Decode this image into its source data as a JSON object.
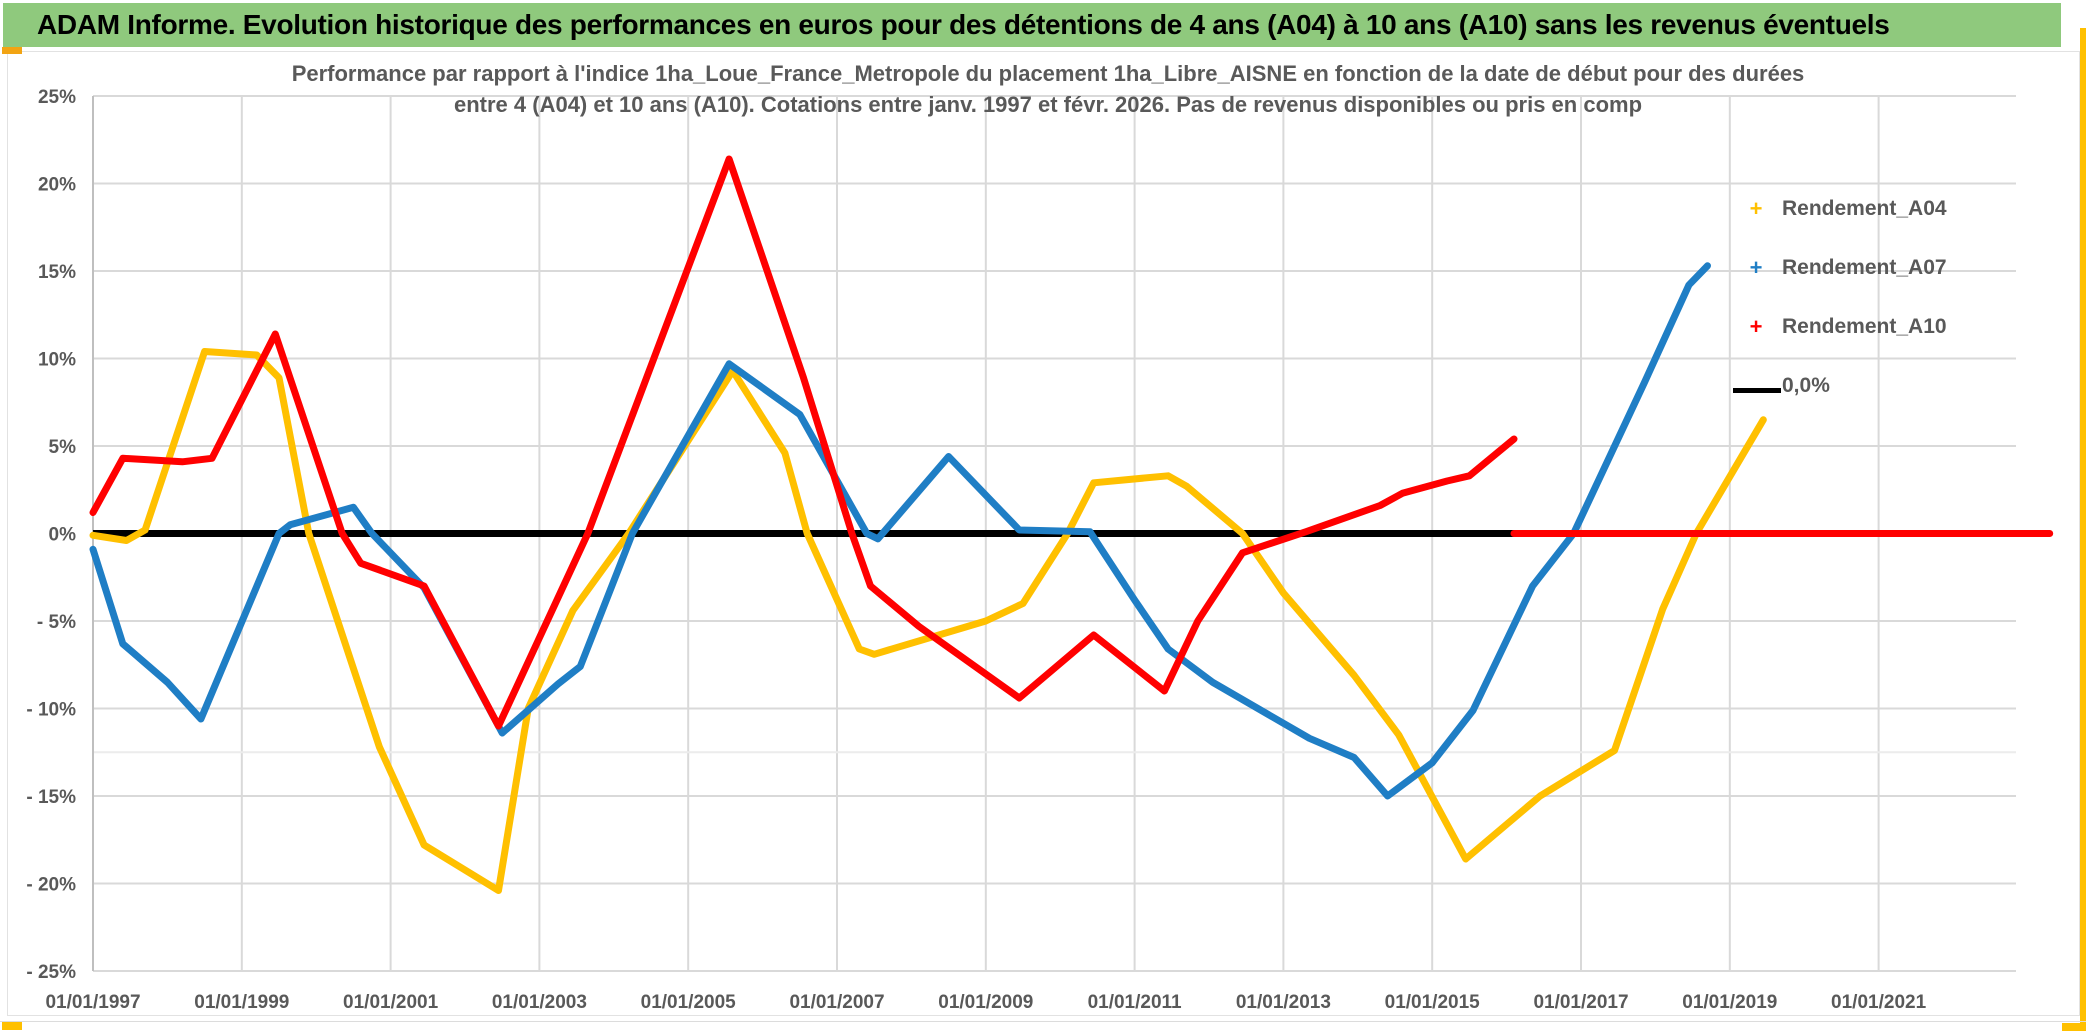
{
  "banner": {
    "title": "ADAM Informe. Evolution historique des performances en euros pour des détentions de 4 ans (A04) à 10 ans (A10) sans les revenus éventuels",
    "background_color": "#8fc97d"
  },
  "chart": {
    "title_line1": "Performance par rapport à l'indice 1ha_Loue_France_Metropole  du placement 1ha_Libre_AISNE en fonction de la date de début pour des durées",
    "title_line2": "entre 4 (A04) et 10 ans (A10). Cotations entre janv. 1997 et févr. 2026. Pas de revenus disponibles ou pris en comp"
  },
  "legend": {
    "items": [
      {
        "label": "Rendement_A04",
        "marker": "plus",
        "color": "#FFC000"
      },
      {
        "label": "Rendement_A07",
        "marker": "plus",
        "color": "#1F7EC5"
      },
      {
        "label": "Rendement_A10",
        "marker": "plus",
        "color": "#FF0000"
      },
      {
        "label": "0,0%",
        "marker": "line",
        "color": "#000000"
      }
    ]
  },
  "chart_data": {
    "type": "line",
    "title": "Performance par rapport à l'indice 1ha_Loue_France_Metropole du placement 1ha_Libre_AISNE",
    "legend_position": "right",
    "grid": true,
    "x_axis": {
      "tick_labels": [
        "01/01/1997",
        "01/01/1999",
        "01/01/2001",
        "01/01/2003",
        "01/01/2005",
        "01/01/2007",
        "01/01/2009",
        "01/01/2011",
        "01/01/2013",
        "01/01/2015",
        "01/01/2017",
        "01/01/2019",
        "01/01/2021"
      ],
      "tick_years": [
        1997,
        1999,
        2001,
        2003,
        2005,
        2007,
        2009,
        2011,
        2013,
        2015,
        2017,
        2019,
        2021
      ],
      "range": [
        1997.0,
        2023.45
      ]
    },
    "y_axis": {
      "tick_labels": [
        "25%",
        "20%",
        "15%",
        "10%",
        "5%",
        "0%",
        "- 5%",
        "- 10%",
        "- 15%",
        "- 20%",
        "- 25%"
      ],
      "tick_values": [
        25,
        20,
        15,
        10,
        5,
        0,
        -5,
        -10,
        -15,
        -20,
        -25
      ],
      "range": [
        -25,
        25
      ],
      "extra_faint_gridline_value": -12.5
    },
    "zero_line": {
      "label": "0,0%",
      "value": 0,
      "color": "#000000",
      "x_range": [
        1997.0,
        2023.3
      ]
    },
    "series": [
      {
        "name": "Rendement_A04",
        "color": "#FFC000",
        "points": [
          [
            1997.0,
            -0.1
          ],
          [
            1997.45,
            -0.4
          ],
          [
            1997.7,
            0.2
          ],
          [
            1998.5,
            10.4
          ],
          [
            1999.2,
            10.2
          ],
          [
            1999.5,
            8.9
          ],
          [
            1999.9,
            0.0
          ],
          [
            2000.85,
            -12.2
          ],
          [
            2001.45,
            -17.8
          ],
          [
            2002.45,
            -20.4
          ],
          [
            2002.85,
            -10.0
          ],
          [
            2003.45,
            -4.4
          ],
          [
            2004.2,
            0.0
          ],
          [
            2005.6,
            9.3
          ],
          [
            2006.3,
            4.6
          ],
          [
            2006.6,
            0.0
          ],
          [
            2007.3,
            -6.6
          ],
          [
            2007.5,
            -6.9
          ],
          [
            2009.0,
            -5.0
          ],
          [
            2009.5,
            -4.0
          ],
          [
            2010.1,
            0.0
          ],
          [
            2010.45,
            2.9
          ],
          [
            2011.45,
            3.3
          ],
          [
            2011.7,
            2.7
          ],
          [
            2012.45,
            0.0
          ],
          [
            2013.0,
            -3.4
          ],
          [
            2013.95,
            -8.1
          ],
          [
            2014.55,
            -11.5
          ],
          [
            2015.45,
            -18.6
          ],
          [
            2016.45,
            -15.0
          ],
          [
            2017.45,
            -12.4
          ],
          [
            2018.1,
            -4.3
          ],
          [
            2018.55,
            0.0
          ],
          [
            2019.45,
            6.5
          ]
        ]
      },
      {
        "name": "Rendement_A07",
        "color": "#1F7EC5",
        "points": [
          [
            1997.0,
            -0.9
          ],
          [
            1997.4,
            -6.3
          ],
          [
            1998.0,
            -8.5
          ],
          [
            1998.45,
            -10.6
          ],
          [
            1999.5,
            0.0
          ],
          [
            1999.65,
            0.5
          ],
          [
            2000.5,
            1.5
          ],
          [
            2000.75,
            0.0
          ],
          [
            2001.45,
            -3.1
          ],
          [
            2002.5,
            -11.4
          ],
          [
            2003.25,
            -8.6
          ],
          [
            2003.55,
            -7.6
          ],
          [
            2004.25,
            0.0
          ],
          [
            2005.55,
            9.7
          ],
          [
            2006.5,
            6.8
          ],
          [
            2007.4,
            0.0
          ],
          [
            2007.55,
            -0.3
          ],
          [
            2008.5,
            4.4
          ],
          [
            2009.45,
            0.2
          ],
          [
            2010.4,
            0.1
          ],
          [
            2011.0,
            -3.8
          ],
          [
            2011.45,
            -6.6
          ],
          [
            2012.05,
            -8.5
          ],
          [
            2013.35,
            -11.7
          ],
          [
            2013.95,
            -12.8
          ],
          [
            2014.4,
            -15.0
          ],
          [
            2015.0,
            -13.1
          ],
          [
            2015.55,
            -10.1
          ],
          [
            2016.35,
            -3.0
          ],
          [
            2016.9,
            0.0
          ],
          [
            2017.85,
            8.6
          ],
          [
            2018.45,
            14.2
          ],
          [
            2018.7,
            15.3
          ]
        ]
      },
      {
        "name": "Rendement_A10",
        "color": "#FF0000",
        "points": [
          [
            1997.0,
            1.2
          ],
          [
            1997.4,
            4.3
          ],
          [
            1998.2,
            4.1
          ],
          [
            1998.6,
            4.3
          ],
          [
            1999.45,
            11.4
          ],
          [
            2000.35,
            0.0
          ],
          [
            2000.6,
            -1.7
          ],
          [
            2001.45,
            -3.0
          ],
          [
            2002.45,
            -11.0
          ],
          [
            2003.65,
            0.0
          ],
          [
            2005.55,
            21.4
          ],
          [
            2006.55,
            8.9
          ],
          [
            2007.2,
            0.0
          ],
          [
            2007.45,
            -3.0
          ],
          [
            2008.1,
            -5.3
          ],
          [
            2009.45,
            -9.4
          ],
          [
            2010.45,
            -5.8
          ],
          [
            2011.4,
            -9.0
          ],
          [
            2011.85,
            -5.0
          ],
          [
            2012.45,
            -1.1
          ],
          [
            2013.3,
            0.1
          ],
          [
            2014.3,
            1.6
          ],
          [
            2014.6,
            2.3
          ],
          [
            2015.2,
            3.0
          ],
          [
            2015.5,
            3.3
          ],
          [
            2016.1,
            5.4
          ]
        ]
      },
      {
        "name": "Rendement_A10_zero_segment",
        "color": "#FF0000",
        "points": [
          [
            2016.1,
            0.0
          ],
          [
            2023.3,
            0.0
          ]
        ]
      }
    ]
  },
  "decorations": {
    "right_strip_color": "#FFC000",
    "bottom_left_block_color": "#FFC000",
    "bottom_right_block_color": "#FFC000",
    "top_left_block_color": "#F2A413"
  }
}
